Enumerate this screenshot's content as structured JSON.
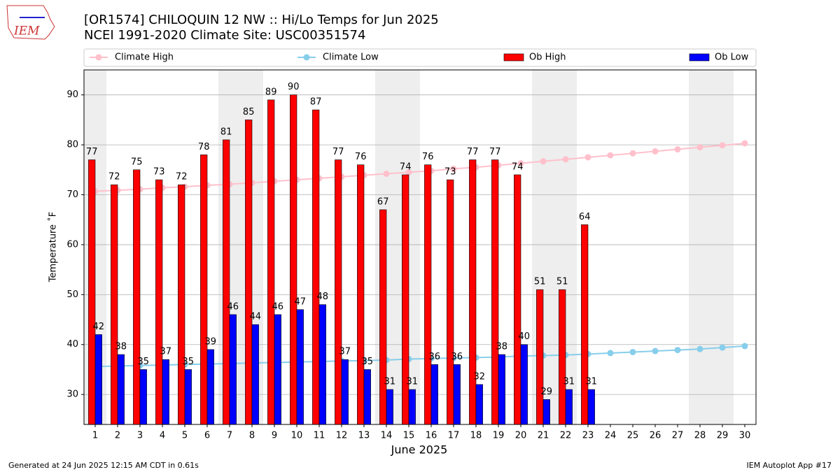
{
  "logo": "IEM",
  "footer_left": "Generated at 24 Jun 2025 12:15 AM CDT in 0.61s",
  "footer_right": "IEM Autoplot App #17",
  "chart_data": {
    "type": "bar",
    "title": "[OR1574] CHILOQUIN 12 NW :: Hi/Lo Temps for Jun 2025",
    "subtitle": "NCEI 1991-2020 Climate Site: USC00351574",
    "x_label": "June 2025",
    "y_label": "Temperature ˚F",
    "x": [
      1,
      2,
      3,
      4,
      5,
      6,
      7,
      8,
      9,
      10,
      11,
      12,
      13,
      14,
      15,
      16,
      17,
      18,
      19,
      20,
      21,
      22,
      23,
      24,
      25,
      26,
      27,
      28,
      29,
      30
    ],
    "xlim": [
      0.5,
      30.5
    ],
    "xticks": [
      1,
      2,
      3,
      4,
      5,
      6,
      7,
      8,
      9,
      10,
      11,
      12,
      13,
      14,
      15,
      16,
      17,
      18,
      19,
      20,
      21,
      22,
      23,
      24,
      25,
      26,
      27,
      28,
      29,
      30
    ],
    "ylim": [
      24,
      95
    ],
    "yticks": [
      30,
      40,
      50,
      60,
      70,
      80,
      90
    ],
    "grid": true,
    "shaded_days": [
      1,
      7,
      8,
      14,
      15,
      21,
      22,
      28,
      29
    ],
    "shade_color": "#eeeeee",
    "series": [
      {
        "name": "Climate High",
        "type": "line",
        "color": "#ffc0cb",
        "values": [
          70.7,
          70.9,
          71.1,
          71.4,
          71.6,
          71.9,
          72.1,
          72.4,
          72.7,
          73.0,
          73.3,
          73.6,
          73.9,
          74.2,
          74.5,
          74.8,
          75.2,
          75.5,
          75.9,
          76.3,
          76.7,
          77.1,
          77.5,
          77.9,
          78.3,
          78.7,
          79.1,
          79.5,
          79.9,
          80.3
        ]
      },
      {
        "name": "Climate Low",
        "type": "line",
        "color": "#87ceeb",
        "values": [
          35.6,
          35.7,
          35.8,
          35.9,
          36.0,
          36.1,
          36.2,
          36.3,
          36.4,
          36.5,
          36.6,
          36.7,
          36.8,
          36.9,
          37.1,
          37.2,
          37.3,
          37.4,
          37.5,
          37.7,
          37.8,
          37.9,
          38.1,
          38.3,
          38.5,
          38.7,
          38.9,
          39.1,
          39.4,
          39.7
        ]
      },
      {
        "name": "Ob High",
        "type": "bar",
        "color": "#ff0000",
        "values": [
          77,
          72,
          75,
          73,
          72,
          78,
          81,
          85,
          89,
          90,
          87,
          77,
          76,
          67,
          74,
          76,
          73,
          77,
          77,
          74,
          51,
          51,
          64,
          null,
          null,
          null,
          null,
          null,
          null,
          null
        ]
      },
      {
        "name": "Ob Low",
        "type": "bar",
        "color": "#0000ff",
        "values": [
          42,
          38,
          35,
          37,
          35,
          39,
          46,
          44,
          46,
          47,
          48,
          37,
          35,
          31,
          31,
          36,
          36,
          32,
          38,
          40,
          29,
          31,
          31,
          null,
          null,
          null,
          null,
          null,
          null,
          null
        ]
      }
    ]
  }
}
